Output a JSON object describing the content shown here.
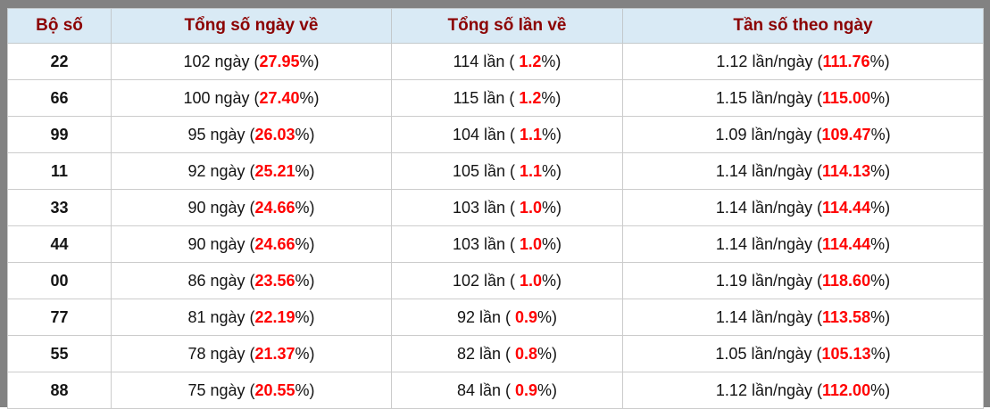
{
  "table": {
    "headers": [
      "Bộ số",
      "Tổng số ngày về",
      "Tổng số lần về",
      "Tần số theo ngày"
    ],
    "rows": [
      {
        "pair": "22",
        "days_prefix": "102 ngày (",
        "days_pct": "27.95",
        "days_suffix": "%)",
        "times_prefix": "114 lần ( ",
        "times_pct": "1.2",
        "times_suffix": "%)",
        "freq_prefix": "1.12 lần/ngày (",
        "freq_pct": "111.76",
        "freq_suffix": "%)"
      },
      {
        "pair": "66",
        "days_prefix": "100 ngày (",
        "days_pct": "27.40",
        "days_suffix": "%)",
        "times_prefix": "115 lần ( ",
        "times_pct": "1.2",
        "times_suffix": "%)",
        "freq_prefix": "1.15 lần/ngày (",
        "freq_pct": "115.00",
        "freq_suffix": "%)"
      },
      {
        "pair": "99",
        "days_prefix": "95 ngày (",
        "days_pct": "26.03",
        "days_suffix": "%)",
        "times_prefix": "104 lần ( ",
        "times_pct": "1.1",
        "times_suffix": "%)",
        "freq_prefix": "1.09 lần/ngày (",
        "freq_pct": "109.47",
        "freq_suffix": "%)"
      },
      {
        "pair": "11",
        "days_prefix": "92 ngày (",
        "days_pct": "25.21",
        "days_suffix": "%)",
        "times_prefix": "105 lần ( ",
        "times_pct": "1.1",
        "times_suffix": "%)",
        "freq_prefix": "1.14 lần/ngày (",
        "freq_pct": "114.13",
        "freq_suffix": "%)"
      },
      {
        "pair": "33",
        "days_prefix": "90 ngày (",
        "days_pct": "24.66",
        "days_suffix": "%)",
        "times_prefix": "103 lần ( ",
        "times_pct": "1.0",
        "times_suffix": "%)",
        "freq_prefix": "1.14 lần/ngày (",
        "freq_pct": "114.44",
        "freq_suffix": "%)"
      },
      {
        "pair": "44",
        "days_prefix": "90 ngày (",
        "days_pct": "24.66",
        "days_suffix": "%)",
        "times_prefix": "103 lần ( ",
        "times_pct": "1.0",
        "times_suffix": "%)",
        "freq_prefix": "1.14 lần/ngày (",
        "freq_pct": "114.44",
        "freq_suffix": "%)"
      },
      {
        "pair": "00",
        "days_prefix": "86 ngày (",
        "days_pct": "23.56",
        "days_suffix": "%)",
        "times_prefix": "102 lần ( ",
        "times_pct": "1.0",
        "times_suffix": "%)",
        "freq_prefix": "1.19 lần/ngày (",
        "freq_pct": "118.60",
        "freq_suffix": "%)"
      },
      {
        "pair": "77",
        "days_prefix": "81 ngày (",
        "days_pct": "22.19",
        "days_suffix": "%)",
        "times_prefix": "92 lần ( ",
        "times_pct": "0.9",
        "times_suffix": "%)",
        "freq_prefix": "1.14 lần/ngày (",
        "freq_pct": "113.58",
        "freq_suffix": "%)"
      },
      {
        "pair": "55",
        "days_prefix": "78 ngày (",
        "days_pct": "21.37",
        "days_suffix": "%)",
        "times_prefix": "82 lần ( ",
        "times_pct": "0.8",
        "times_suffix": "%)",
        "freq_prefix": "1.05 lần/ngày (",
        "freq_pct": "105.13",
        "freq_suffix": "%)"
      },
      {
        "pair": "88",
        "days_prefix": "75 ngày (",
        "days_pct": "20.55",
        "days_suffix": "%)",
        "times_prefix": "84 lần ( ",
        "times_pct": "0.9",
        "times_suffix": "%)",
        "freq_prefix": "1.12 lần/ngày (",
        "freq_pct": "112.00",
        "freq_suffix": "%)"
      }
    ]
  },
  "colors": {
    "frame_gray": "#828282",
    "header_bg": "#d9eaf5",
    "header_text": "#8b0000",
    "highlight_red": "#ff0000",
    "cell_border": "#cccccc"
  }
}
